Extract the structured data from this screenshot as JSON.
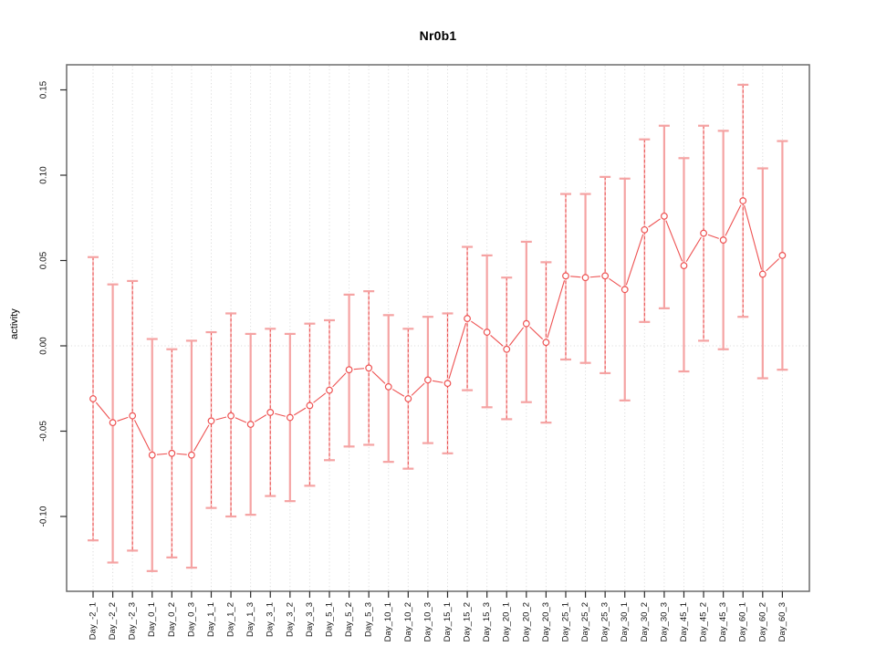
{
  "chart": {
    "title": "Nr0b1",
    "ylabel": "activity"
  },
  "chart_data": {
    "type": "line",
    "title": "Nr0b1",
    "xlabel": "",
    "ylabel": "activity",
    "legend": "none",
    "grid": "vertical-dotted",
    "zero_line": true,
    "ylim": [
      -0.144,
      0.165
    ],
    "yticks": [
      0.15,
      0.1,
      0.05,
      0.0,
      -0.05,
      -0.1
    ],
    "ytick_labels": [
      "0.15",
      "0.10",
      "0.05",
      "0.00",
      "-0.05",
      "-0.10"
    ],
    "categories": [
      "Day_-2_1",
      "Day_-2_2",
      "Day_-2_3",
      "Day_0_1",
      "Day_0_2",
      "Day_0_3",
      "Day_1_1",
      "Day_1_2",
      "Day_1_3",
      "Day_3_1",
      "Day_3_2",
      "Day_3_3",
      "Day_5_1",
      "Day_5_2",
      "Day_5_3",
      "Day_10_1",
      "Day_10_2",
      "Day_10_3",
      "Day_15_1",
      "Day_15_2",
      "Day_15_3",
      "Day_20_1",
      "Day_20_2",
      "Day_20_3",
      "Day_25_1",
      "Day_25_2",
      "Day_25_3",
      "Day_30_1",
      "Day_30_2",
      "Day_30_3",
      "Day_45_1",
      "Day_45_2",
      "Day_45_3",
      "Day_60_1",
      "Day_60_2",
      "Day_60_3"
    ],
    "series": [
      {
        "name": "activity",
        "marker": "open-circle",
        "values": [
          -0.031,
          -0.045,
          -0.041,
          -0.064,
          -0.063,
          -0.064,
          -0.044,
          -0.041,
          -0.046,
          -0.039,
          -0.042,
          -0.035,
          -0.026,
          -0.014,
          -0.013,
          -0.024,
          -0.031,
          -0.02,
          -0.022,
          0.016,
          0.008,
          -0.002,
          0.013,
          0.002,
          0.041,
          0.04,
          0.041,
          0.033,
          0.068,
          0.076,
          0.047,
          0.066,
          0.062,
          0.085,
          0.042,
          0.053
        ],
        "ci_low": [
          -0.114,
          -0.127,
          -0.12,
          -0.132,
          -0.124,
          -0.13,
          -0.095,
          -0.1,
          -0.099,
          -0.088,
          -0.091,
          -0.082,
          -0.067,
          -0.059,
          -0.058,
          -0.068,
          -0.072,
          -0.057,
          -0.063,
          -0.026,
          -0.036,
          -0.043,
          -0.033,
          -0.045,
          -0.008,
          -0.01,
          -0.016,
          -0.032,
          0.014,
          0.022,
          -0.015,
          0.003,
          -0.002,
          0.017,
          -0.019,
          -0.014
        ],
        "ci_high": [
          0.052,
          0.036,
          0.038,
          0.004,
          -0.002,
          0.003,
          0.008,
          0.019,
          0.007,
          0.01,
          0.007,
          0.013,
          0.015,
          0.03,
          0.032,
          0.018,
          0.01,
          0.017,
          0.019,
          0.058,
          0.053,
          0.04,
          0.061,
          0.049,
          0.089,
          0.089,
          0.099,
          0.098,
          0.121,
          0.129,
          0.11,
          0.129,
          0.126,
          0.153,
          0.104,
          0.12
        ],
        "bar_styles": [
          "dashed",
          "solid",
          "dashed",
          "solid",
          "dashed",
          "solid",
          "dashed",
          "dashed",
          "solid",
          "dashed",
          "solid",
          "dashed",
          "dashed",
          "solid",
          "dashed",
          "solid",
          "dashed",
          "solid",
          "dashed",
          "dashed",
          "solid",
          "dashed",
          "solid",
          "dashed",
          "dashed",
          "solid",
          "dashed",
          "solid",
          "dashed",
          "solid",
          "solid",
          "dashed",
          "solid",
          "dashed",
          "solid",
          "solid"
        ]
      }
    ],
    "colors": {
      "point": "#ee5252",
      "line": "#ee5252",
      "bar_dashed": "#e84d4d",
      "bar_solid": "#f5a3a3",
      "bar_underlay": "#f8bcbc",
      "cap": "#f5a3a3",
      "grid": "#dcdcdc",
      "zero": "#dcdcdc",
      "frame": "#6b6b6b",
      "tick": "#2b2b2b",
      "text": "#111111"
    }
  }
}
